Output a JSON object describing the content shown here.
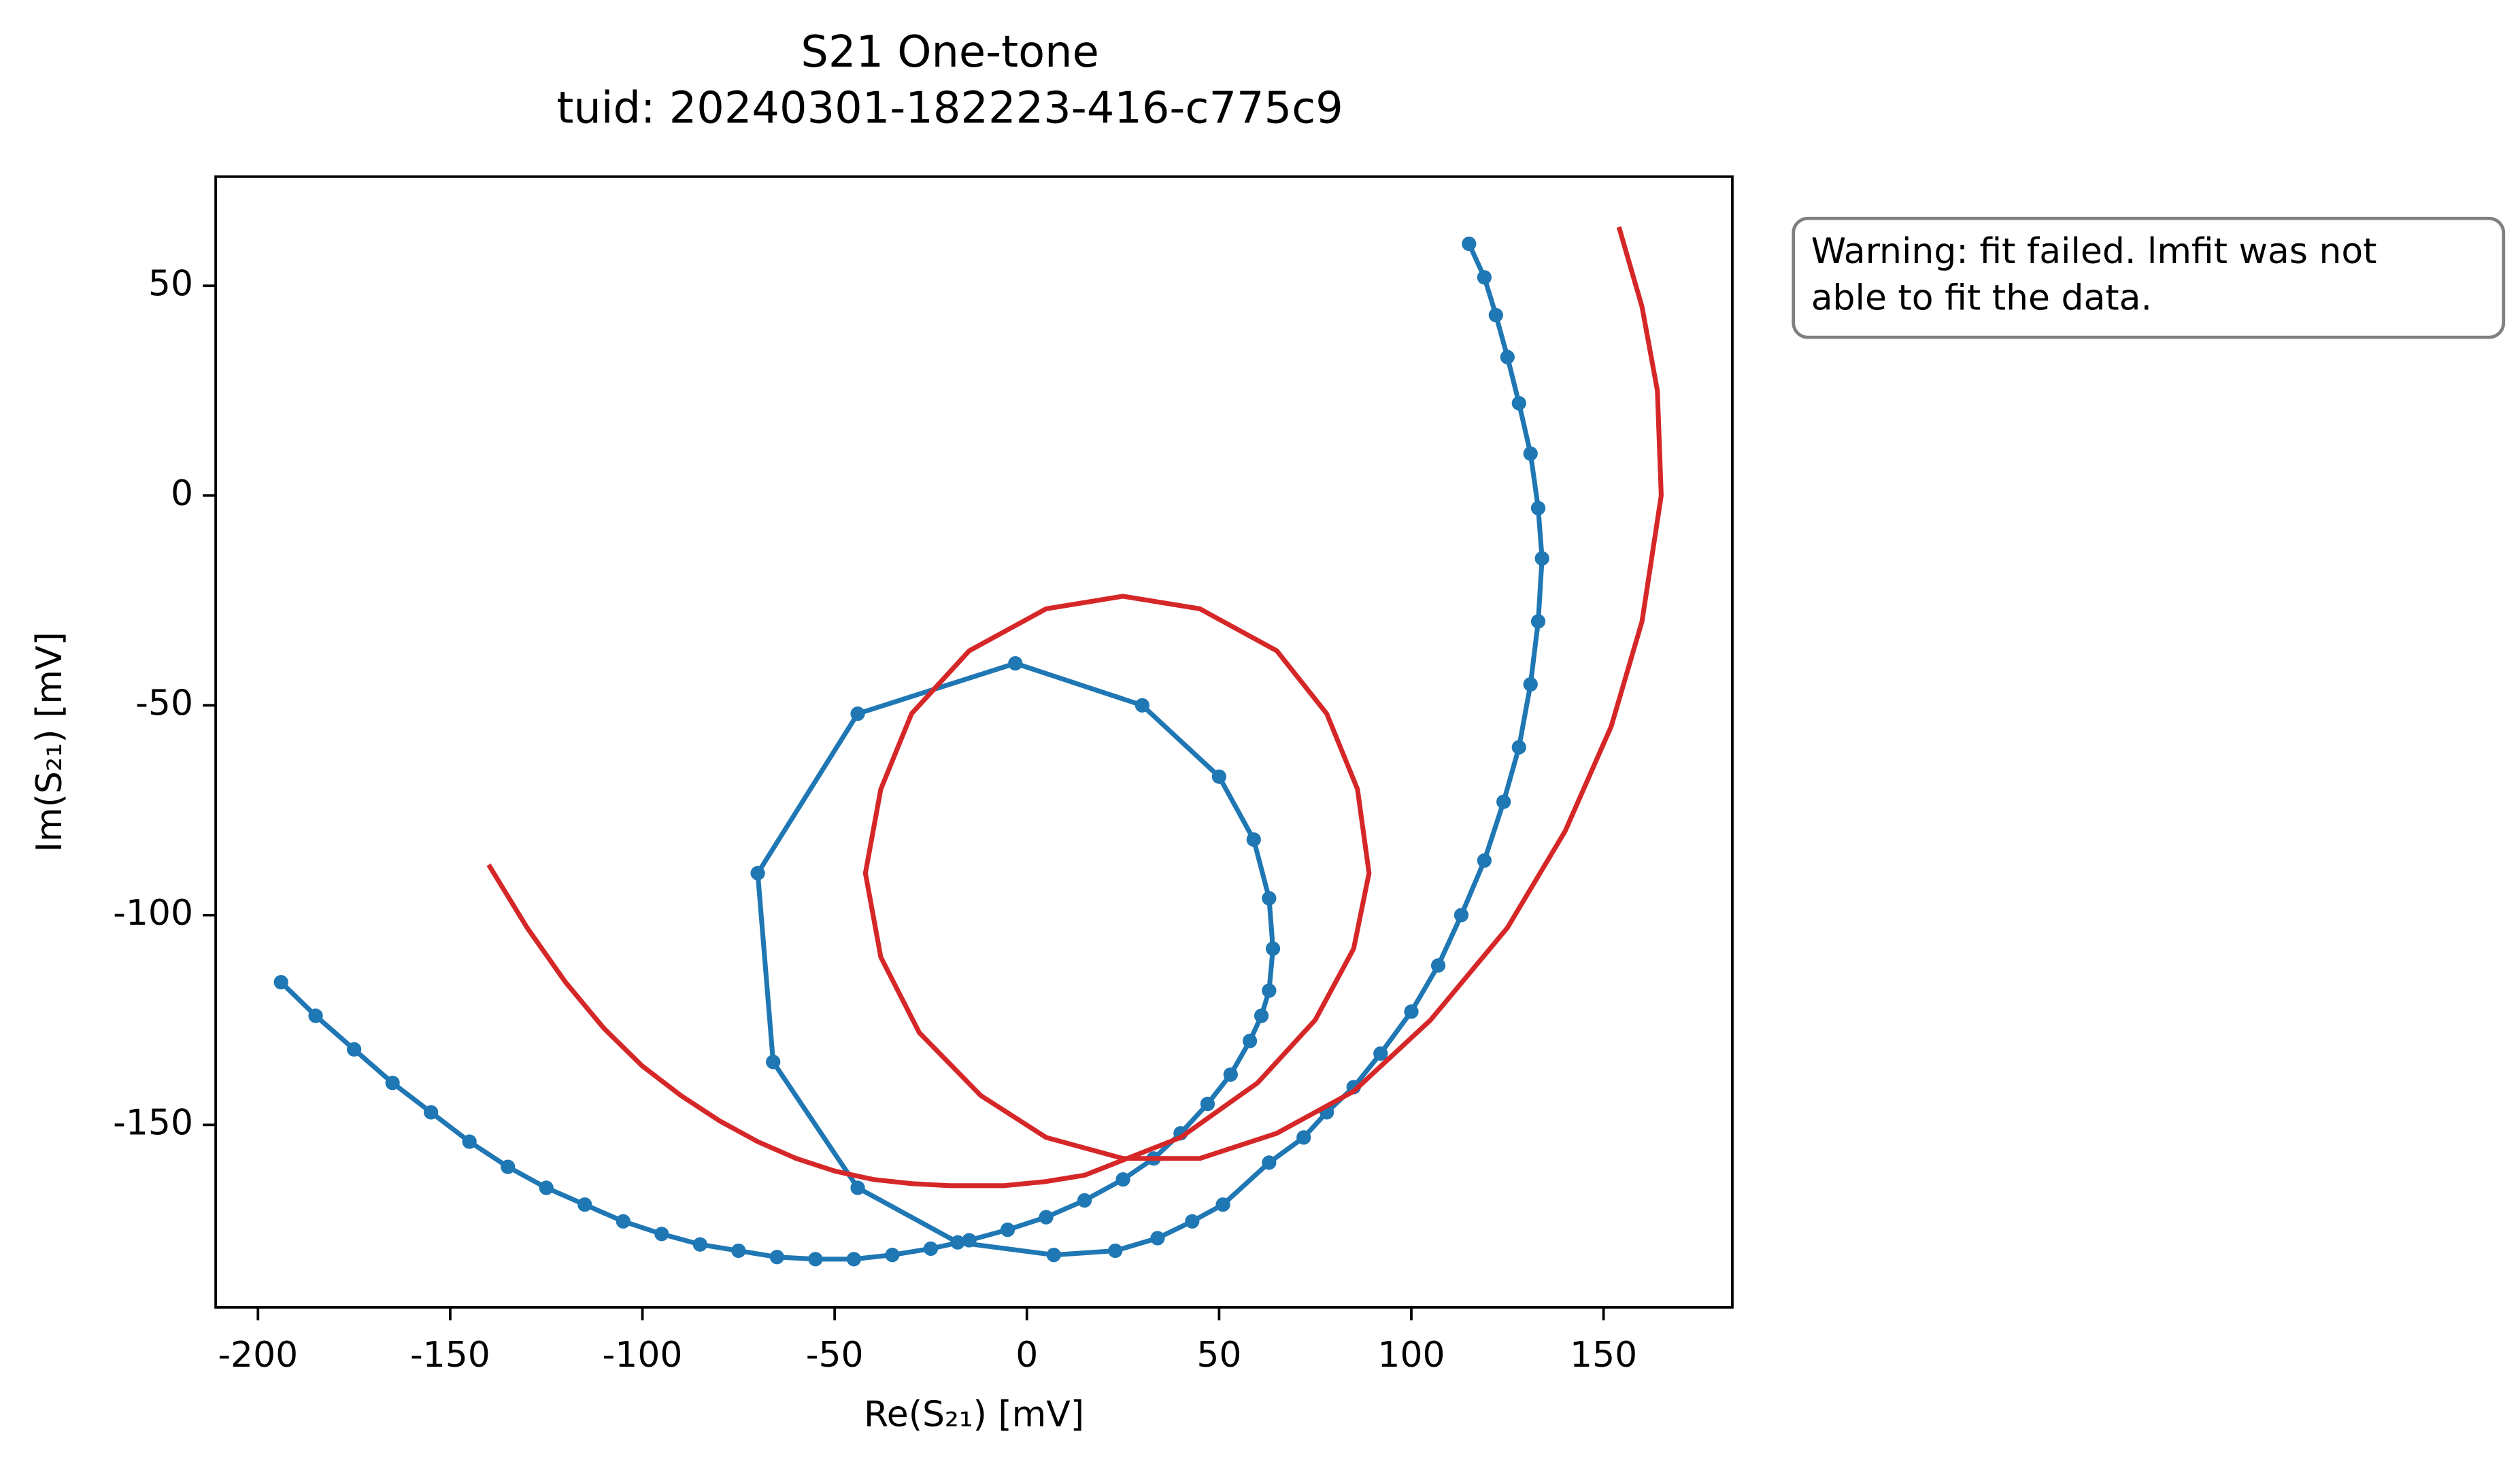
{
  "chart_data": {
    "type": "line",
    "title": "S21 One-tone",
    "subtitle": "tuid: 20240301-182223-416-c775c9",
    "xlabel": "Re(S₂₁) [mV]",
    "ylabel": "Im(S₂₁) [mV]",
    "annotation": [
      "Warning: fit failed. lmfit was not",
      "able to fit the data."
    ],
    "xlim": [
      -211,
      183.5
    ],
    "ylim": [
      -193.5,
      76
    ],
    "xticks": [
      -200,
      -150,
      -100,
      -50,
      0,
      50,
      100,
      150
    ],
    "yticks": [
      -150,
      -100,
      -50,
      0,
      50
    ],
    "grid": false,
    "series": [
      {
        "color": "#1f77b4",
        "marker": true,
        "x": [
          -194,
          -185,
          -175,
          -165,
          -155,
          -145,
          -135,
          -125,
          -115,
          -105,
          -95,
          -85,
          -75,
          -65,
          -55,
          -45,
          -35,
          -25,
          -15,
          -5,
          5,
          15,
          25,
          33,
          40,
          47,
          53,
          58,
          61,
          63,
          64,
          63,
          59,
          50,
          30,
          -3,
          -44,
          -70,
          -66,
          -44,
          -18,
          7,
          23,
          34,
          43,
          51,
          63,
          72,
          78,
          85,
          92,
          100,
          107,
          113,
          119,
          124,
          128,
          131,
          133,
          134,
          133,
          131,
          128,
          125,
          122,
          119,
          115
        ],
        "values": [
          -116,
          -124,
          -132,
          -140,
          -147,
          -154,
          -160,
          -165,
          -169,
          -173,
          -176,
          -178.5,
          -180,
          -181.5,
          -182,
          -182,
          -181,
          -179.5,
          -177.5,
          -175,
          -172,
          -168,
          -163,
          -158,
          -152,
          -145,
          -138,
          -130,
          -124,
          -118,
          -108,
          -96,
          -82,
          -67,
          -50,
          -40,
          -52,
          -90,
          -135,
          -165,
          -178,
          -181,
          -180,
          -177,
          -173,
          -169,
          -159,
          -153,
          -147,
          -141,
          -133,
          -123,
          -112,
          -100,
          -87,
          -73,
          -60,
          -45,
          -30,
          -15,
          -3,
          10,
          22,
          33,
          43,
          52,
          60
        ]
      },
      {
        "color": "#d62728",
        "marker": false,
        "x": [
          -140,
          -130,
          -120,
          -110,
          -100,
          -90,
          -80,
          -70,
          -60,
          -50,
          -40,
          -30,
          -20,
          -6,
          5,
          15,
          40,
          60,
          75,
          85,
          89,
          86,
          78,
          65,
          45,
          25,
          5,
          -15,
          -30,
          -38,
          -42,
          -38,
          -28,
          -12,
          5,
          25,
          45,
          65,
          85,
          105,
          125,
          140,
          152,
          160,
          165,
          164,
          160,
          154
        ],
        "values": [
          -88,
          -103,
          -116,
          -127,
          -136,
          -143,
          -149,
          -154,
          -158,
          -161,
          -163,
          -164,
          -164.5,
          -164.5,
          -163.5,
          -162,
          -153,
          -140,
          -125,
          -108,
          -90,
          -70,
          -52,
          -37,
          -27,
          -24,
          -27,
          -37,
          -52,
          -70,
          -90,
          -110,
          -128,
          -143,
          -153,
          -158,
          -158,
          -152,
          -142,
          -125,
          -103,
          -80,
          -55,
          -30,
          0,
          25,
          45,
          64
        ]
      }
    ]
  }
}
